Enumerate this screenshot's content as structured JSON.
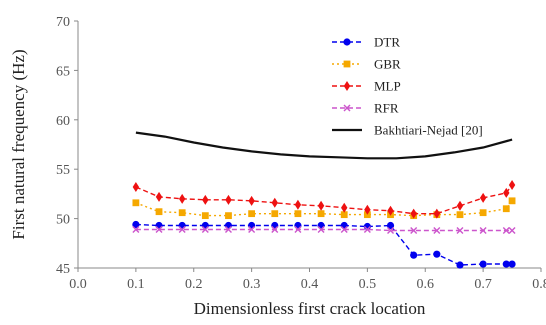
{
  "chart_data": {
    "type": "line",
    "xlabel": "Dimensionless first crack location",
    "ylabel": "First natural frequency (Hz)",
    "xlim": [
      0.0,
      0.8
    ],
    "ylim": [
      45,
      70
    ],
    "xticks": [
      "0.0",
      "0.1",
      "0.2",
      "0.3",
      "0.4",
      "0.5",
      "0.6",
      "0.7",
      "0.8"
    ],
    "yticks": [
      "45",
      "50",
      "55",
      "60",
      "65",
      "70"
    ],
    "grid": false,
    "legend_position": "top-right",
    "series": [
      {
        "name": "DTR",
        "color": "#0000ee",
        "marker": "circle",
        "line": "dashed",
        "x": [
          0.1,
          0.14,
          0.18,
          0.22,
          0.26,
          0.3,
          0.34,
          0.38,
          0.42,
          0.46,
          0.5,
          0.54,
          0.58,
          0.62,
          0.66,
          0.7,
          0.74,
          0.75
        ],
        "y": [
          49.4,
          49.3,
          49.3,
          49.3,
          49.3,
          49.3,
          49.3,
          49.3,
          49.3,
          49.3,
          49.2,
          49.3,
          46.3,
          46.4,
          45.3,
          45.4,
          45.4,
          45.4
        ]
      },
      {
        "name": "GBR",
        "color": "#f5a800",
        "marker": "square",
        "line": "dotted",
        "x": [
          0.1,
          0.14,
          0.18,
          0.22,
          0.26,
          0.3,
          0.34,
          0.38,
          0.42,
          0.46,
          0.5,
          0.54,
          0.58,
          0.62,
          0.66,
          0.7,
          0.74,
          0.75
        ],
        "y": [
          51.6,
          50.7,
          50.6,
          50.3,
          50.3,
          50.5,
          50.5,
          50.5,
          50.5,
          50.4,
          50.4,
          50.4,
          50.3,
          50.4,
          50.4,
          50.6,
          51.0,
          51.8
        ]
      },
      {
        "name": "MLP",
        "color": "#ee1111",
        "marker": "diamond",
        "line": "dashed",
        "x": [
          0.1,
          0.14,
          0.18,
          0.22,
          0.26,
          0.3,
          0.34,
          0.38,
          0.42,
          0.46,
          0.5,
          0.54,
          0.58,
          0.62,
          0.66,
          0.7,
          0.74,
          0.75
        ],
        "y": [
          53.2,
          52.2,
          52.0,
          51.9,
          51.9,
          51.8,
          51.6,
          51.4,
          51.3,
          51.1,
          50.9,
          50.8,
          50.5,
          50.5,
          51.3,
          52.1,
          52.6,
          53.4
        ]
      },
      {
        "name": "RFR",
        "color": "#cc55cc",
        "marker": "x",
        "line": "dashed",
        "x": [
          0.1,
          0.14,
          0.18,
          0.22,
          0.26,
          0.3,
          0.34,
          0.38,
          0.42,
          0.46,
          0.5,
          0.54,
          0.58,
          0.62,
          0.66,
          0.7,
          0.74,
          0.75
        ],
        "y": [
          48.9,
          48.9,
          48.9,
          48.9,
          48.9,
          48.9,
          48.9,
          48.9,
          48.9,
          48.9,
          48.9,
          48.8,
          48.8,
          48.8,
          48.8,
          48.8,
          48.8,
          48.8
        ]
      },
      {
        "name": "Bakhtiari-Nejad [20]",
        "color": "#111111",
        "marker": "none",
        "line": "solid",
        "x": [
          0.1,
          0.15,
          0.2,
          0.25,
          0.3,
          0.35,
          0.4,
          0.45,
          0.5,
          0.55,
          0.6,
          0.65,
          0.7,
          0.75
        ],
        "y": [
          58.7,
          58.3,
          57.7,
          57.2,
          56.8,
          56.5,
          56.3,
          56.2,
          56.1,
          56.1,
          56.3,
          56.7,
          57.2,
          58.0
        ]
      }
    ]
  }
}
